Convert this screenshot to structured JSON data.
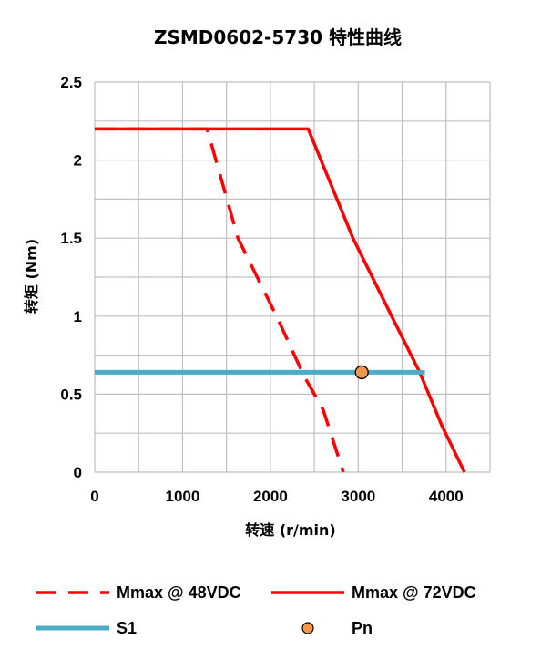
{
  "chart_data": {
    "type": "line",
    "title": "ZSMD0602-5730 特性曲线",
    "xlabel": "转速 (r/min)",
    "ylabel": "转矩 (Nm)",
    "xlim": [
      0,
      4500
    ],
    "ylim": [
      0,
      2.5
    ],
    "x_ticks": [
      "0",
      "1000",
      "2000",
      "3000",
      "4000"
    ],
    "y_ticks": [
      "0",
      "0.5",
      "1",
      "1.5",
      "2",
      "2.5"
    ],
    "grid": true,
    "legend_position": "bottom",
    "series": [
      {
        "name": "Mmax @ 48VDC",
        "style": "dashed",
        "color": "#ff0000",
        "points": [
          [
            0,
            2.2
          ],
          [
            1280,
            2.2
          ],
          [
            1630,
            1.5
          ],
          [
            2070,
            1.0
          ],
          [
            2380,
            0.62
          ],
          [
            2600,
            0.4
          ],
          [
            2830,
            0.0
          ]
        ]
      },
      {
        "name": "Mmax @ 72VDC",
        "style": "solid",
        "color": "#ff0000",
        "points": [
          [
            0,
            2.2
          ],
          [
            2430,
            2.2
          ],
          [
            2940,
            1.5
          ],
          [
            3380,
            1.0
          ],
          [
            3700,
            0.64
          ],
          [
            3950,
            0.3
          ],
          [
            4210,
            0.0
          ]
        ]
      },
      {
        "name": "S1",
        "style": "solid",
        "color": "#4bacc6",
        "points": [
          [
            0,
            0.64
          ],
          [
            3760,
            0.64
          ]
        ]
      },
      {
        "name": "Pn",
        "style": "marker",
        "color": "#f79646",
        "points": [
          [
            3040,
            0.64
          ]
        ]
      }
    ]
  }
}
